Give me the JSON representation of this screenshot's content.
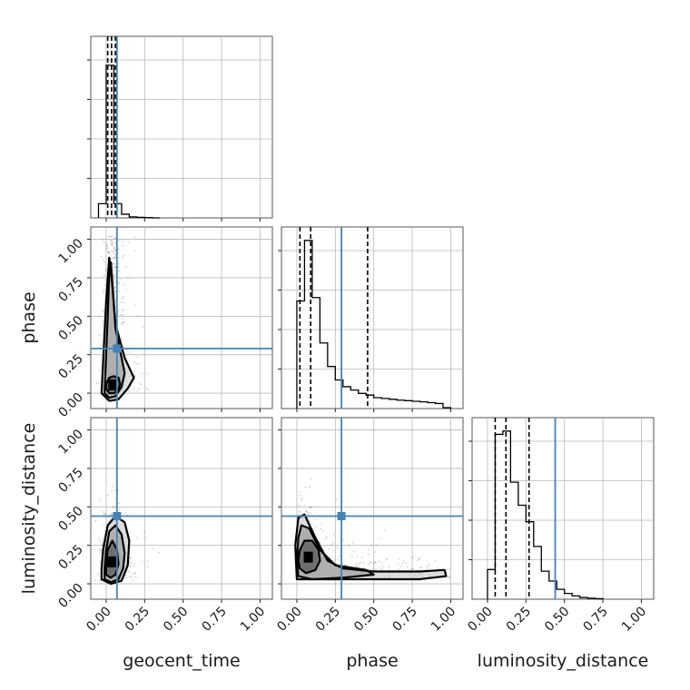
{
  "chart_data": {
    "type": "corner",
    "parameters": [
      "geocent_time",
      "phase",
      "luminosity_distance"
    ],
    "axis_range": [
      -0.1,
      1.08
    ],
    "tick_values": [
      0.0,
      0.25,
      0.5,
      0.75,
      1.0
    ],
    "tick_labels": [
      "0.00",
      "0.25",
      "0.50",
      "0.75",
      "1.00"
    ],
    "grid": true,
    "truth_color": "#4682b4",
    "line_color": "#000000",
    "truths": {
      "geocent_time": 0.07,
      "phase": 0.29,
      "luminosity_distance": 0.44
    },
    "quantiles": {
      "geocent_time": [
        0.01,
        0.035,
        0.06
      ],
      "phase": [
        0.02,
        0.09,
        0.46
      ],
      "luminosity_distance": [
        0.05,
        0.12,
        0.27
      ]
    },
    "histograms": {
      "geocent_time": {
        "edges": [
          -0.05,
          0.0,
          0.05,
          0.1,
          0.15,
          0.2,
          0.25,
          0.3,
          0.35
        ],
        "values": [
          0.27,
          2.9,
          0.27,
          0.07,
          0.02,
          0.01,
          0.005,
          0.0
        ]
      },
      "phase": {
        "edges": [
          0.0,
          0.05,
          0.1,
          0.15,
          0.2,
          0.25,
          0.3,
          0.35,
          0.4,
          0.45,
          0.5,
          0.55,
          0.6,
          0.65,
          0.7,
          0.75,
          0.8,
          0.85,
          0.9,
          0.95,
          1.0
        ],
        "values": [
          0.64,
          1.0,
          0.66,
          0.39,
          0.25,
          0.17,
          0.13,
          0.11,
          0.09,
          0.08,
          0.065,
          0.06,
          0.055,
          0.05,
          0.047,
          0.043,
          0.04,
          0.035,
          0.03,
          0.005
        ]
      },
      "luminosity_distance": {
        "edges": [
          0.0,
          0.05,
          0.1,
          0.15,
          0.2,
          0.25,
          0.3,
          0.35,
          0.4,
          0.45,
          0.5,
          0.55,
          0.6,
          0.65,
          0.7,
          0.75
        ],
        "values": [
          0.18,
          1.0,
          1.02,
          0.71,
          0.57,
          0.47,
          0.32,
          0.17,
          0.11,
          0.06,
          0.035,
          0.02,
          0.01,
          0.006,
          0.003
        ]
      }
    },
    "contours": {
      "phase_vs_geocent_time": [
        {
          "x": [
            0.0,
            0.02,
            0.05,
            0.08,
            0.09,
            0.08,
            0.05,
            0.02,
            0.0
          ],
          "y": [
            0.03,
            0.0,
            0.0,
            0.02,
            0.06,
            0.1,
            0.11,
            0.1,
            0.06
          ]
        },
        {
          "x": [
            -0.01,
            0.02,
            0.06,
            0.1,
            0.12,
            0.1,
            0.06,
            0.045,
            0.03,
            0.02,
            0.01,
            0.0
          ],
          "y": [
            0.0,
            -0.03,
            -0.02,
            0.04,
            0.13,
            0.23,
            0.42,
            0.65,
            0.85,
            0.8,
            0.5,
            0.25
          ]
        },
        {
          "x": [
            -0.03,
            0.02,
            0.08,
            0.14,
            0.18,
            0.12,
            0.06,
            0.04,
            0.02,
            0.0,
            -0.02
          ],
          "y": [
            0.0,
            -0.05,
            -0.04,
            0.03,
            0.1,
            0.23,
            0.45,
            0.7,
            0.88,
            0.6,
            0.2
          ]
        }
      ],
      "luminosity_distance_vs_geocent_time": [
        {
          "x": [
            0.0,
            0.03,
            0.06,
            0.08,
            0.07,
            0.04,
            0.01,
            0.0
          ],
          "y": [
            0.06,
            0.04,
            0.06,
            0.13,
            0.22,
            0.28,
            0.22,
            0.13
          ]
        },
        {
          "x": [
            -0.01,
            0.03,
            0.08,
            0.11,
            0.12,
            0.1,
            0.06,
            0.02,
            0.0,
            -0.01
          ],
          "y": [
            0.03,
            0.01,
            0.03,
            0.1,
            0.2,
            0.32,
            0.38,
            0.34,
            0.22,
            0.1
          ]
        },
        {
          "x": [
            -0.03,
            0.03,
            0.1,
            0.14,
            0.15,
            0.12,
            0.06,
            0.01,
            -0.02,
            -0.03
          ],
          "y": [
            0.03,
            0.0,
            0.02,
            0.12,
            0.28,
            0.4,
            0.44,
            0.38,
            0.22,
            0.1
          ]
        }
      ],
      "luminosity_distance_vs_phase": [
        {
          "x": [
            0.02,
            0.06,
            0.12,
            0.15,
            0.14,
            0.1,
            0.05,
            0.02,
            0.01
          ],
          "y": [
            0.1,
            0.07,
            0.09,
            0.15,
            0.22,
            0.28,
            0.28,
            0.22,
            0.15
          ]
        },
        {
          "x": [
            0.01,
            0.1,
            0.3,
            0.5,
            0.45,
            0.25,
            0.15,
            0.08,
            0.03,
            0.01,
            0.0
          ],
          "y": [
            0.05,
            0.03,
            0.04,
            0.06,
            0.09,
            0.12,
            0.22,
            0.36,
            0.38,
            0.3,
            0.15
          ]
        },
        {
          "x": [
            0.0,
            0.2,
            0.5,
            0.8,
            0.97,
            0.96,
            0.8,
            0.5,
            0.3,
            0.2,
            0.12,
            0.05,
            0.01,
            -0.01
          ],
          "y": [
            0.03,
            0.03,
            0.03,
            0.03,
            0.05,
            0.09,
            0.08,
            0.08,
            0.1,
            0.15,
            0.3,
            0.45,
            0.43,
            0.25
          ]
        }
      ]
    }
  }
}
